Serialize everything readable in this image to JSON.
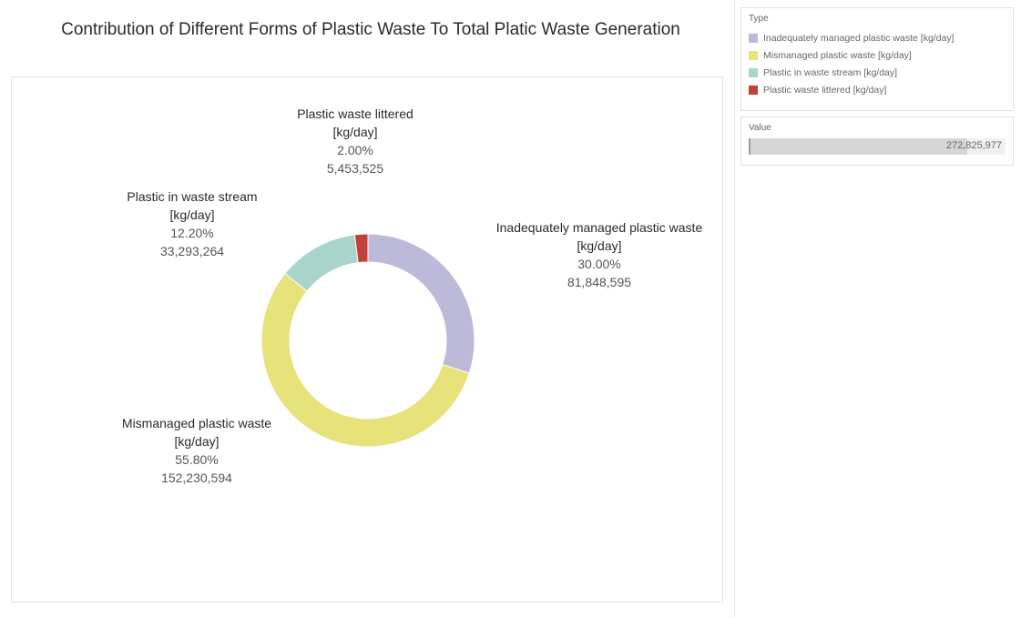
{
  "page": {
    "title": "Contribution of Different Forms of Plastic Waste To Total Platic Waste Generation"
  },
  "chart_data": {
    "type": "pie",
    "style": "donut",
    "title": "Contribution of Different Forms of Plastic Waste To Total Platic Waste Generation",
    "start_angle_deg": 0,
    "direction": "clockwise",
    "slices": [
      {
        "label": "Inadequately managed plastic waste [kg/day]",
        "name_lines": [
          "Inadequately managed plastic waste",
          "[kg/day]"
        ],
        "percent": 30.0,
        "percent_text": "30.00%",
        "value": 81848595,
        "value_text": "81,848,595",
        "color": "#bcbad8"
      },
      {
        "label": "Mismanaged plastic waste [kg/day]",
        "name_lines": [
          "Mismanaged plastic waste",
          "[kg/day]"
        ],
        "percent": 55.8,
        "percent_text": "55.80%",
        "value": 152230594,
        "value_text": "152,230,594",
        "color": "#e8e27a"
      },
      {
        "label": "Plastic in waste stream [kg/day]",
        "name_lines": [
          "Plastic in waste stream",
          "[kg/day]"
        ],
        "percent": 12.2,
        "percent_text": "12.20%",
        "value": 33293264,
        "value_text": "33,293,264",
        "color": "#a9d4cb"
      },
      {
        "label": "Plastic waste littered [kg/day]",
        "name_lines": [
          "Plastic waste littered",
          "[kg/day]"
        ],
        "percent": 2.0,
        "percent_text": "2.00%",
        "value": 5453525,
        "value_text": "5,453,525",
        "color": "#c1403a"
      }
    ]
  },
  "legend": {
    "title": "Type",
    "items": [
      {
        "label": "Inadequately managed plastic waste  [kg/day]",
        "color": "#bcbad8"
      },
      {
        "label": "Mismanaged plastic waste [kg/day]",
        "color": "#e8e27a"
      },
      {
        "label": "Plastic in waste stream  [kg/day]",
        "color": "#a9d4cb"
      },
      {
        "label": "Plastic waste littered [kg/day]",
        "color": "#c1403a"
      }
    ]
  },
  "value_filter": {
    "title": "Value",
    "value_text": "272,825,977",
    "fill_fraction": 0.85
  }
}
